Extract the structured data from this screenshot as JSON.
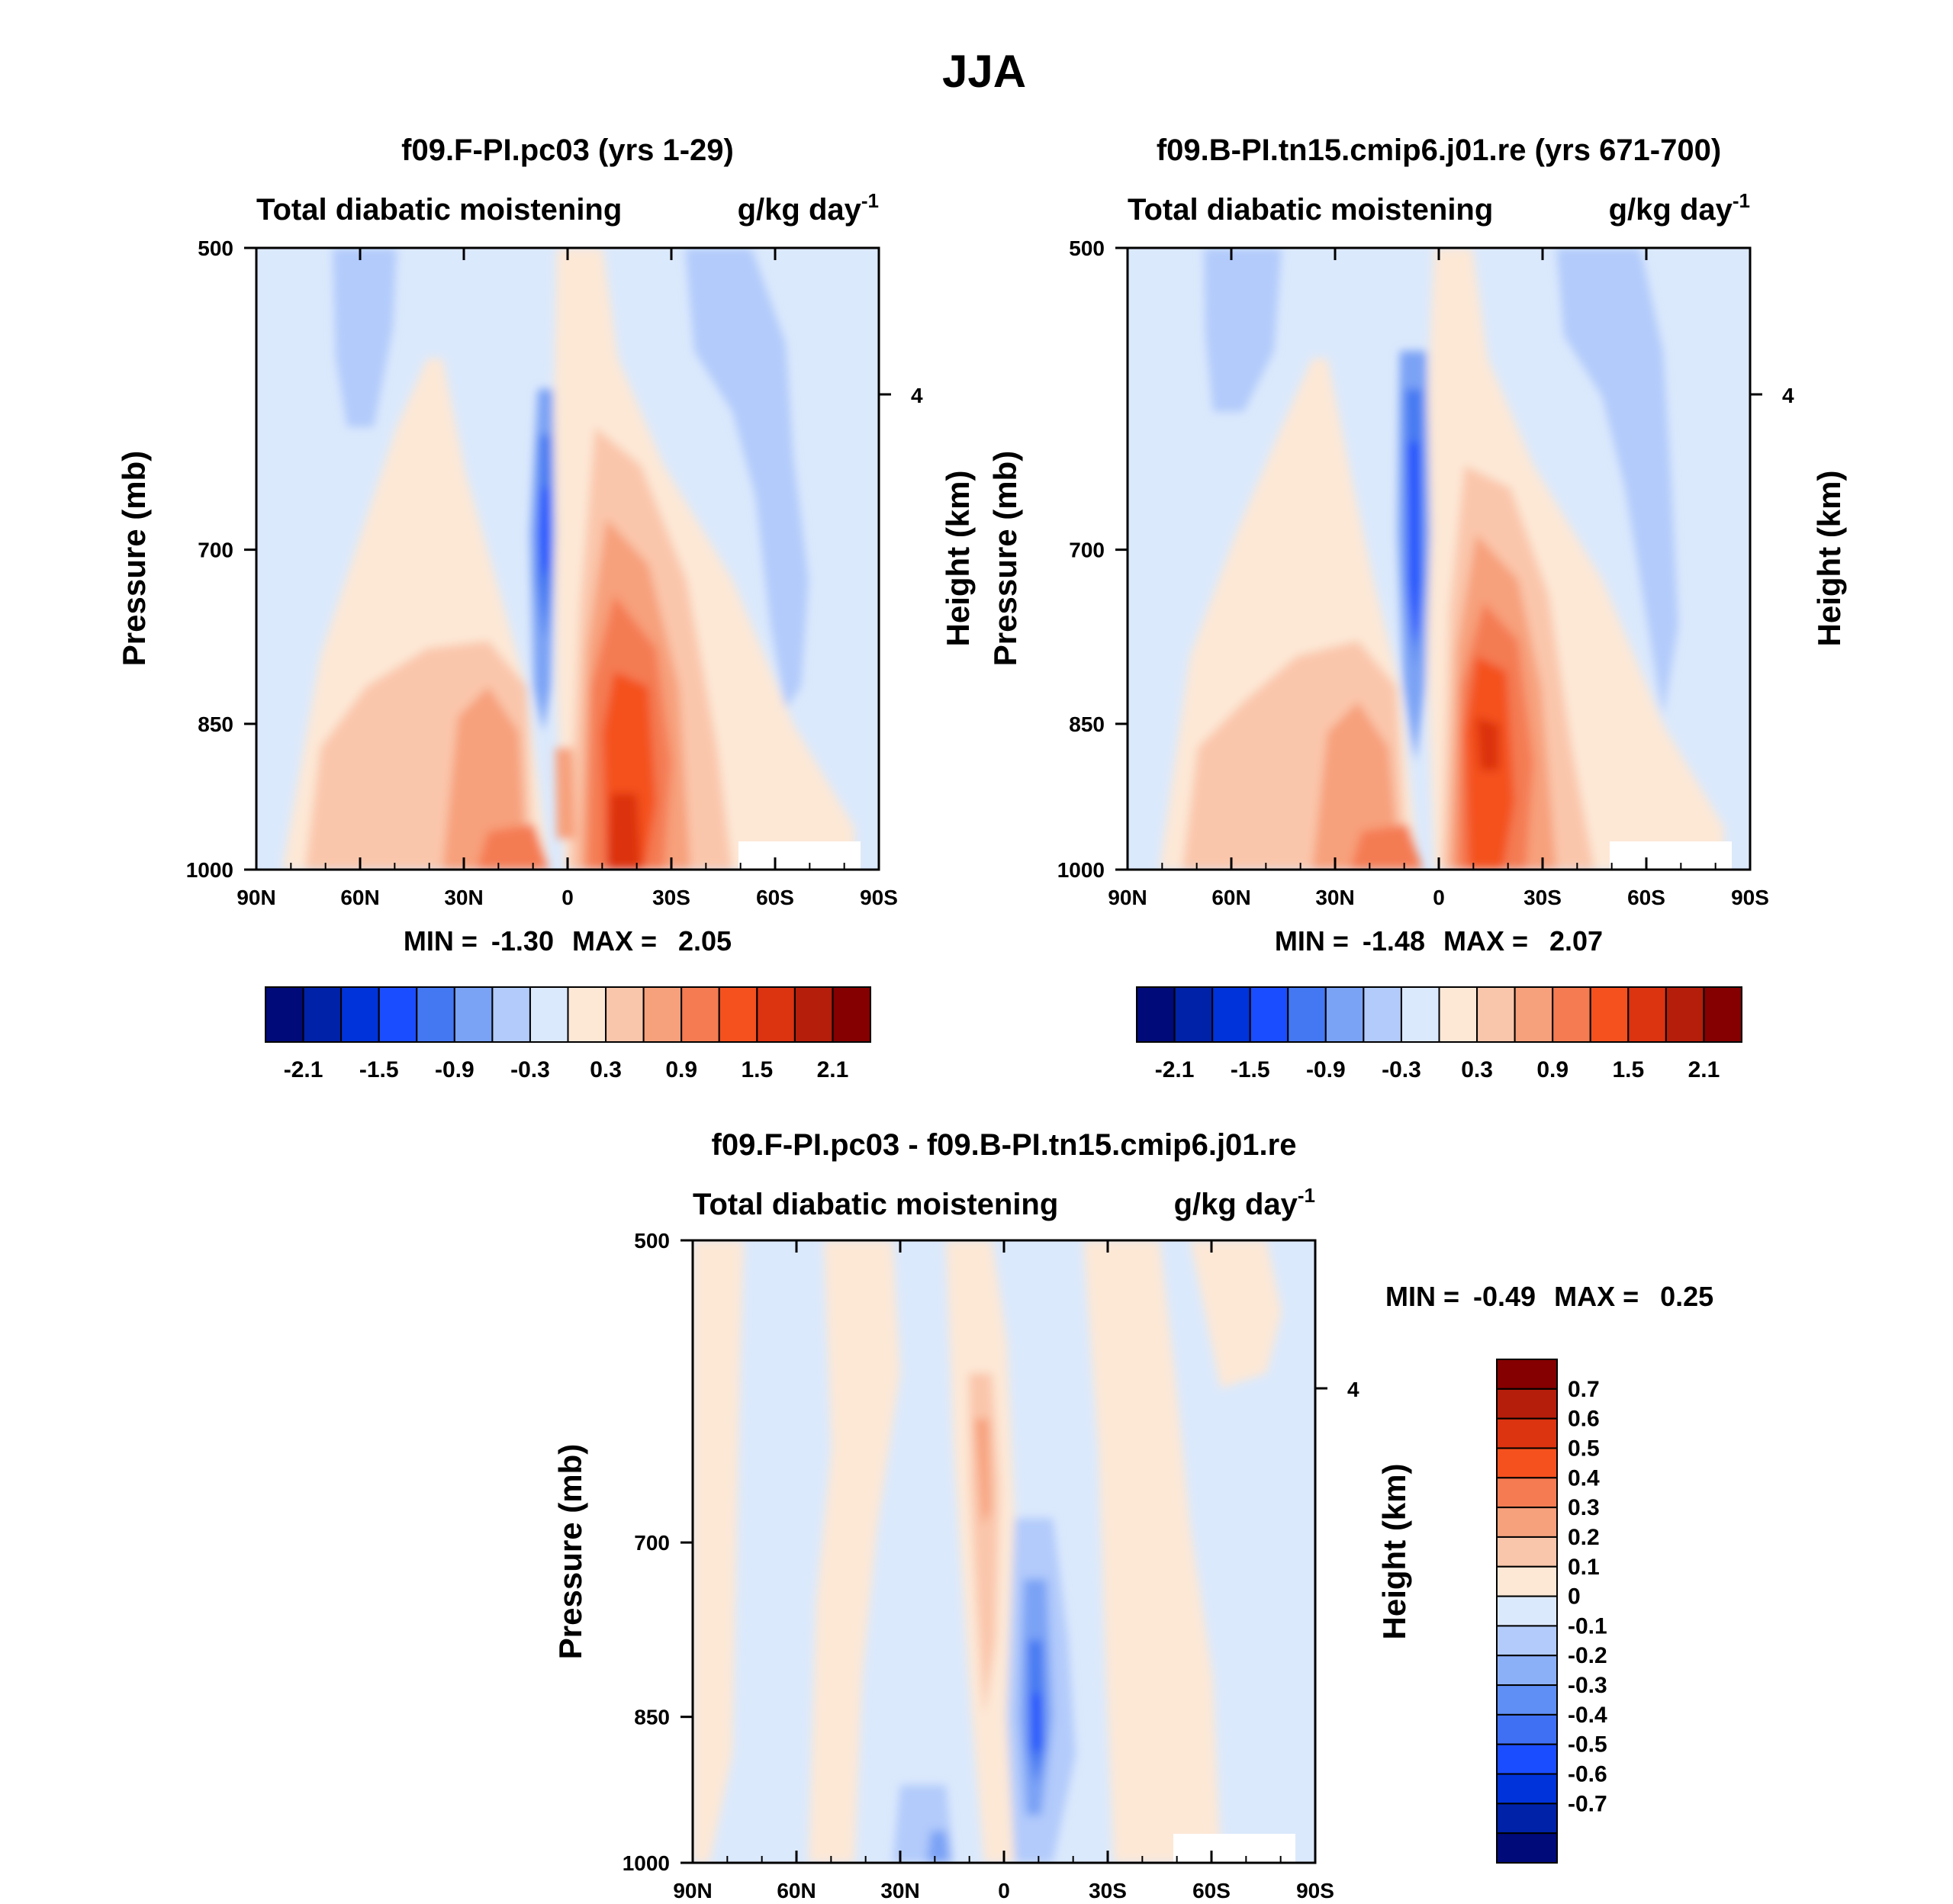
{
  "figure": {
    "title": "JJA"
  },
  "chart_data": [
    {
      "type": "contour",
      "title": "f09.F-PI.pc03 (yrs 1-29)",
      "variable": "Total diabatic moistening",
      "units": "g/kg day",
      "units_exponent": "-1",
      "ylabel": "Pressure (mb)",
      "ylabel_right": "Height (km)",
      "right_ticks": [
        "4"
      ],
      "x_ticks": [
        "90N",
        "60N",
        "30N",
        "0",
        "30S",
        "60S",
        "90S"
      ],
      "y_ticks": [
        "500",
        "700",
        "850",
        "1000"
      ],
      "ylim": [
        1000,
        500
      ],
      "min_label": "MIN =",
      "min": "-1.30",
      "max_label": "MAX =",
      "max": "2.05",
      "colorbar": {
        "orientation": "horizontal",
        "tick_labels": [
          "-2.1",
          "-1.5",
          "-0.9",
          "-0.3",
          "0.3",
          "0.9",
          "1.5",
          "2.1"
        ]
      },
      "features": [
        {
          "lat": -7,
          "p": 730,
          "value": -1.3
        },
        {
          "lat": 18,
          "p": 880,
          "value": 2.05
        },
        {
          "lat": -28,
          "p": 900,
          "value": 0.8
        }
      ]
    },
    {
      "type": "contour",
      "title": "f09.B-PI.tn15.cmip6.j01.re (yrs 671-700)",
      "variable": "Total diabatic moistening",
      "units": "g/kg day",
      "units_exponent": "-1",
      "ylabel": "Pressure (mb)",
      "ylabel_right": "Height (km)",
      "right_ticks": [
        "4"
      ],
      "x_ticks": [
        "90N",
        "60N",
        "30N",
        "0",
        "30S",
        "60S",
        "90S"
      ],
      "y_ticks": [
        "500",
        "700",
        "850",
        "1000"
      ],
      "ylim": [
        1000,
        500
      ],
      "min_label": "MIN =",
      "min": "-1.48",
      "max_label": "MAX =",
      "max": "2.07",
      "colorbar": {
        "orientation": "horizontal",
        "tick_labels": [
          "-2.1",
          "-1.5",
          "-0.9",
          "-0.3",
          "0.3",
          "0.9",
          "1.5",
          "2.1"
        ]
      },
      "features": [
        {
          "lat": -7,
          "p": 720,
          "value": -1.48
        },
        {
          "lat": 14,
          "p": 890,
          "value": 2.07
        },
        {
          "lat": -28,
          "p": 920,
          "value": 0.9
        }
      ]
    },
    {
      "type": "contour",
      "title": "f09.F-PI.pc03 - f09.B-PI.tn15.cmip6.j01.re",
      "variable": "Total diabatic moistening",
      "units": "g/kg day",
      "units_exponent": "-1",
      "ylabel": "Pressure (mb)",
      "ylabel_right": "Height (km)",
      "right_ticks": [
        "4"
      ],
      "x_ticks": [
        "90N",
        "60N",
        "30N",
        "0",
        "30S",
        "60S",
        "90S"
      ],
      "y_ticks": [
        "500",
        "700",
        "850",
        "1000"
      ],
      "ylim": [
        1000,
        500
      ],
      "min_label": "MIN =",
      "min": "-0.49",
      "max_label": "MAX =",
      "max": "0.25",
      "colorbar": {
        "orientation": "vertical",
        "tick_labels": [
          "0.7",
          "0.6",
          "0.5",
          "0.4",
          "0.3",
          "0.2",
          "0.1",
          "0",
          "-0.1",
          "-0.2",
          "-0.3",
          "-0.4",
          "-0.5",
          "-0.6",
          "-0.7"
        ]
      },
      "features": [
        {
          "lat": 8,
          "p": 870,
          "value": -0.49
        },
        {
          "lat": -8,
          "p": 760,
          "value": 0.25
        }
      ]
    }
  ],
  "colors": {
    "palette16": [
      "#000a78",
      "#0022a8",
      "#0033d9",
      "#1a4dff",
      "#4478f2",
      "#7aa2f5",
      "#b2cbfb",
      "#dbe9fc",
      "#fde8d6",
      "#fac6ab",
      "#f7a07c",
      "#f47b52",
      "#f4511e",
      "#dc3310",
      "#b51e0a",
      "#850000"
    ],
    "palette16_diff": [
      "#000a78",
      "#0022a8",
      "#0033d9",
      "#1a4dff",
      "#3f70f4",
      "#5f8ef5",
      "#8cb0f8",
      "#b2cbfb",
      "#dbe9fc",
      "#fde8d6",
      "#fac6ab",
      "#f7a07c",
      "#f47b52",
      "#f4511e",
      "#dc3310",
      "#b51e0a",
      "#850000"
    ],
    "base_neg": "#dbe9fc",
    "base_pos": "#fde8d6"
  }
}
